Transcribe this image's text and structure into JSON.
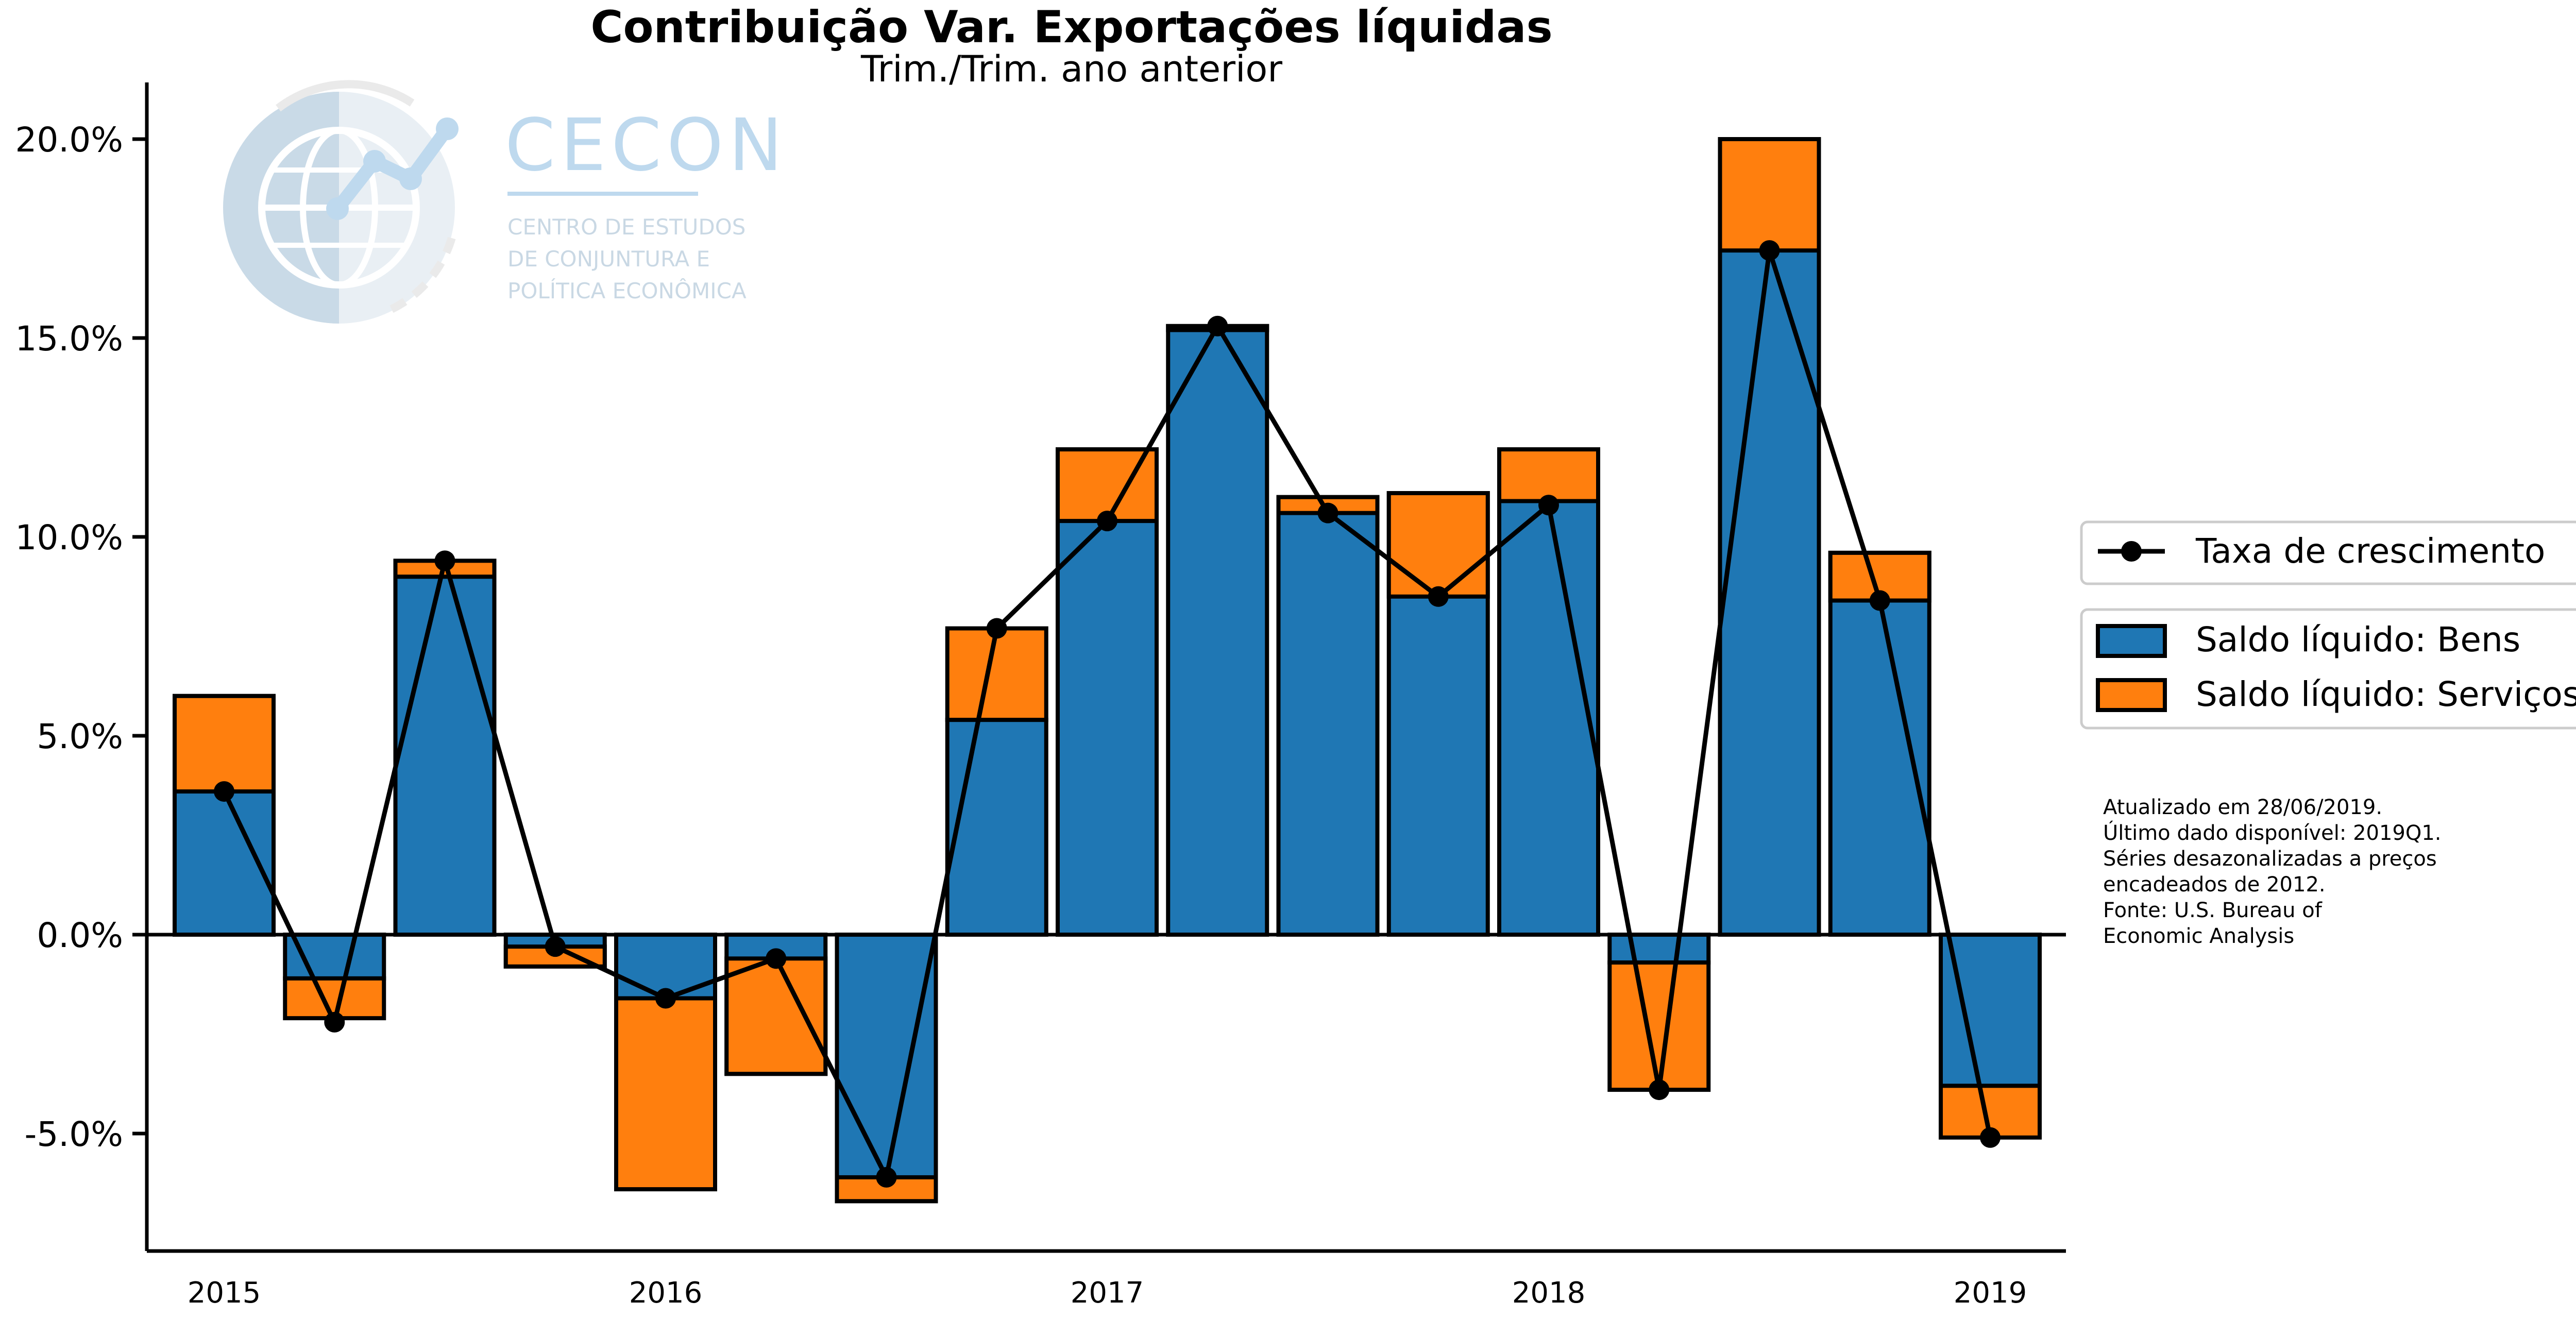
{
  "chart_data": {
    "type": "bar",
    "title": "Contribuição Var. Exportações líquidas",
    "subtitle": "Trim./Trim. ano anterior",
    "x": [
      "2015Q1",
      "2015Q2",
      "2015Q3",
      "2015Q4",
      "2016Q1",
      "2016Q2",
      "2016Q3",
      "2016Q4",
      "2017Q1",
      "2017Q2",
      "2017Q3",
      "2017Q4",
      "2018Q1",
      "2018Q2",
      "2018Q3",
      "2018Q4",
      "2019Q1"
    ],
    "x_tick_labels": [
      "2015",
      "2016",
      "2017",
      "2018",
      "2019"
    ],
    "y_ticks": [
      -5,
      0,
      5,
      10,
      15,
      20
    ],
    "y_tick_labels": [
      "-5.0%",
      "0.0%",
      "5.0%",
      "10.0%",
      "15.0%",
      "20.0%"
    ],
    "ylim": [
      -8,
      21.3
    ],
    "stacked": true,
    "series": [
      {
        "name": "Saldo líquido: Bens",
        "kind": "bar",
        "color": "#1f77b4",
        "values": [
          6.0,
          -1.1,
          9.0,
          -0.8,
          -6.4,
          -3.5,
          -6.7,
          5.4,
          12.2,
          15.3,
          11.0,
          11.1,
          12.2,
          -0.7,
          20.0,
          9.6,
          -3.8
        ]
      },
      {
        "name": "Saldo líquido: Serviços",
        "kind": "bar",
        "color": "#ff7f0e",
        "values": [
          -2.4,
          -1.0,
          0.4,
          0.5,
          4.8,
          2.9,
          0.6,
          2.3,
          -1.8,
          -0.1,
          -0.4,
          -2.6,
          -1.3,
          -3.2,
          -2.8,
          -1.2,
          -1.3
        ]
      },
      {
        "name": "Taxa de crescimento",
        "kind": "line",
        "color": "#000000",
        "values": [
          3.6,
          -2.2,
          9.4,
          -0.3,
          -1.6,
          -0.6,
          -6.1,
          7.7,
          10.4,
          15.3,
          10.6,
          8.5,
          10.8,
          -3.9,
          17.2,
          8.4,
          -5.1
        ]
      }
    ],
    "legend_position": "right",
    "grid": false
  },
  "logo": {
    "name": "CECON",
    "subtitle_lines": [
      "CENTRO DE ESTUDOS",
      "DE CONJUNTURA E",
      "POLÍTICA ECONÔMICA"
    ]
  },
  "notes": [
    "Atualizado em 28/06/2019.",
    "Último dado disponível: 2019Q1.",
    "Séries desazonalizadas a preços",
    "encadeados de 2012.",
    "Fonte: U.S. Bureau of",
    "Economic Analysis"
  ]
}
